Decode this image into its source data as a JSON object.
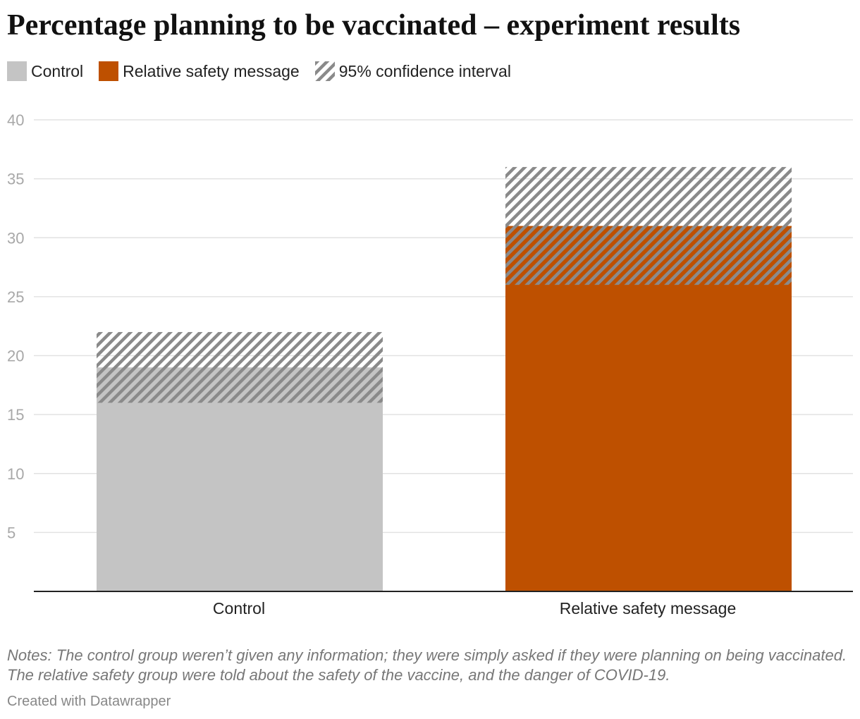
{
  "title": "Percentage planning to be vaccinated – experiment results",
  "legend": {
    "control_label": "Control",
    "relative_label": "Relative safety message",
    "ci_label": "95% confidence interval"
  },
  "colors": {
    "control": "#c4c4c4",
    "relative": "#be5000",
    "ci_stripe": "#8a8a8a",
    "gridline": "#e2e2e2",
    "axis_text": "#a8a8a8"
  },
  "notes": "Notes: The control group weren’t given any information; they were simply asked if they were planning on being vaccinated. The relative safety group were told about the safety of the vaccine, and the danger of COVID-19.",
  "credit": "Created with Datawrapper",
  "chart_data": {
    "type": "bar",
    "categories": [
      "Control",
      "Relative safety message"
    ],
    "values": [
      19,
      31
    ],
    "ci_low": [
      16,
      26
    ],
    "ci_high": [
      22,
      36
    ],
    "yticks": [
      5,
      10,
      15,
      20,
      25,
      30,
      35,
      40
    ],
    "ylim": [
      0,
      40
    ],
    "grid": true,
    "legend_position": "top-left",
    "xlabel": "",
    "ylabel": ""
  }
}
